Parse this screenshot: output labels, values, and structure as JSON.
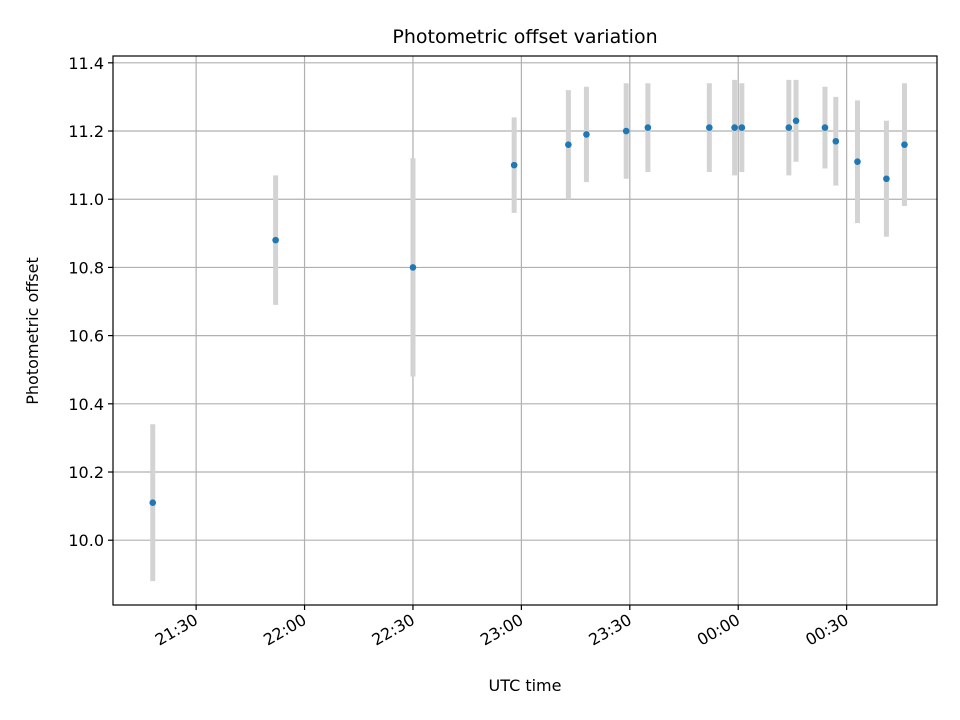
{
  "chart_data": {
    "type": "scatter",
    "title": "Photometric offset variation",
    "xlabel": "UTC time",
    "ylabel": "Photometric offset",
    "x_axis_type": "time",
    "x_ticks": [
      "21:30",
      "22:00",
      "22:30",
      "23:00",
      "23:30",
      "00:00",
      "00:30"
    ],
    "x_tick_labels_rotated": true,
    "y_ticks": [
      "10.0",
      "10.2",
      "10.4",
      "10.6",
      "10.8",
      "11.0",
      "11.2",
      "11.4"
    ],
    "xlim": [
      "21:07",
      "00:55"
    ],
    "ylim": [
      9.81,
      11.42
    ],
    "grid": true,
    "marker_color": "#1f77b4",
    "errorbar_color": "#d3d3d3",
    "points": [
      {
        "t": "21:18",
        "y": 10.11,
        "err": 0.23
      },
      {
        "t": "21:52",
        "y": 10.88,
        "err": 0.19
      },
      {
        "t": "22:30",
        "y": 10.8,
        "err": 0.32
      },
      {
        "t": "22:58",
        "y": 11.1,
        "err": 0.14
      },
      {
        "t": "23:13",
        "y": 11.16,
        "err": 0.16
      },
      {
        "t": "23:18",
        "y": 11.19,
        "err": 0.14
      },
      {
        "t": "23:29",
        "y": 11.2,
        "err": 0.14
      },
      {
        "t": "23:35",
        "y": 11.21,
        "err": 0.13
      },
      {
        "t": "23:52",
        "y": 11.21,
        "err": 0.13
      },
      {
        "t": "23:59",
        "y": 11.21,
        "err": 0.14
      },
      {
        "t": "00:01",
        "y": 11.21,
        "err": 0.13
      },
      {
        "t": "00:14",
        "y": 11.21,
        "err": 0.14
      },
      {
        "t": "00:16",
        "y": 11.23,
        "err": 0.12
      },
      {
        "t": "00:24",
        "y": 11.21,
        "err": 0.12
      },
      {
        "t": "00:27",
        "y": 11.17,
        "err": 0.13
      },
      {
        "t": "00:33",
        "y": 11.11,
        "err": 0.18
      },
      {
        "t": "00:41",
        "y": 11.06,
        "err": 0.17
      },
      {
        "t": "00:46",
        "y": 11.16,
        "err": 0.18
      }
    ]
  }
}
